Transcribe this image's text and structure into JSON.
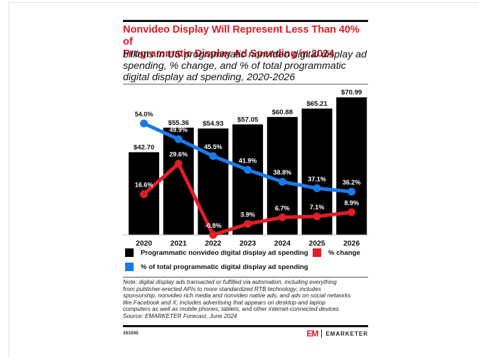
{
  "header": {
    "title_lines": [
      "Nonvideo Display Will Represent Less Than 40% of",
      "Programmatic Display Ad Spending in 2024"
    ],
    "subtitle_lines": [
      "billions in US programmatic nonvideo digital display ad",
      "spending, % change, and % of total programmatic",
      "digital display ad spending, 2020-2026"
    ]
  },
  "colors": {
    "title": "#d71f2b",
    "bars": "#000000",
    "change_line": "#e01e26",
    "share_line": "#1a7ae8"
  },
  "chart_data": {
    "type": "bar",
    "title": "Nonvideo Display Will Represent Less Than 40% of Programmatic Display Ad Spending in 2024",
    "subtitle": "billions in US programmatic nonvideo digital display ad spending, % change, and % of total programmatic digital display ad spending, 2020-2026",
    "xlabel": "",
    "ylabel": "",
    "grid": false,
    "legend_position": "bottom",
    "categories": [
      "2020",
      "2021",
      "2022",
      "2023",
      "2024",
      "2025",
      "2026"
    ],
    "series": [
      {
        "name": "Programmatic nonvideo digital display ad spending",
        "type": "bar",
        "unit": "billions USD",
        "values": [
          42.7,
          55.36,
          54.93,
          57.05,
          60.88,
          65.21,
          70.99
        ],
        "labels": [
          "$42.70",
          "$55.36",
          "$54.93",
          "$57.05",
          "$60.88",
          "$65.21",
          "$70.99"
        ]
      },
      {
        "name": "% change",
        "type": "line",
        "unit": "%",
        "values": [
          16.6,
          29.6,
          -0.8,
          3.9,
          6.7,
          7.1,
          8.9
        ],
        "labels": [
          "16.6%",
          "29.6%",
          "-0.8%",
          "3.9%",
          "6.7%",
          "7.1%",
          "8.9%"
        ]
      },
      {
        "name": "% of total programmatic digital display ad spending",
        "type": "line",
        "unit": "%",
        "values": [
          54.0,
          49.9,
          45.5,
          41.9,
          38.8,
          37.1,
          36.2
        ],
        "labels": [
          "54.0%",
          "49.9%",
          "45.5%",
          "41.9%",
          "38.8%",
          "37.1%",
          "36.2%"
        ]
      }
    ]
  },
  "legend": {
    "items": [
      {
        "label": "Programmatic nonvideo digital display ad spending",
        "color": "#000000"
      },
      {
        "label": "% change",
        "color": "#e01e26"
      },
      {
        "label": "% of total programmatic digital display ad spending",
        "color": "#1a7ae8"
      }
    ]
  },
  "note": {
    "lines": [
      "Note: digital display ads transacted or fulfilled via automation, including everything",
      "from publisher-erected APIs to more standardized RTB technology; includes",
      "sponsorship, nonvideo rich media and nonvideo native ads, and ads on social networks",
      "like Facebook and X; includes advertising that appears on desktop and laptop",
      "computers as well as mobile phones, tablets, and other internet-connected devices",
      "Source: EMARKETER Forecast, June 2024"
    ]
  },
  "footer": {
    "chart_id": "351545",
    "brand_mark": "EM",
    "brand_name": "EMARKETER"
  }
}
